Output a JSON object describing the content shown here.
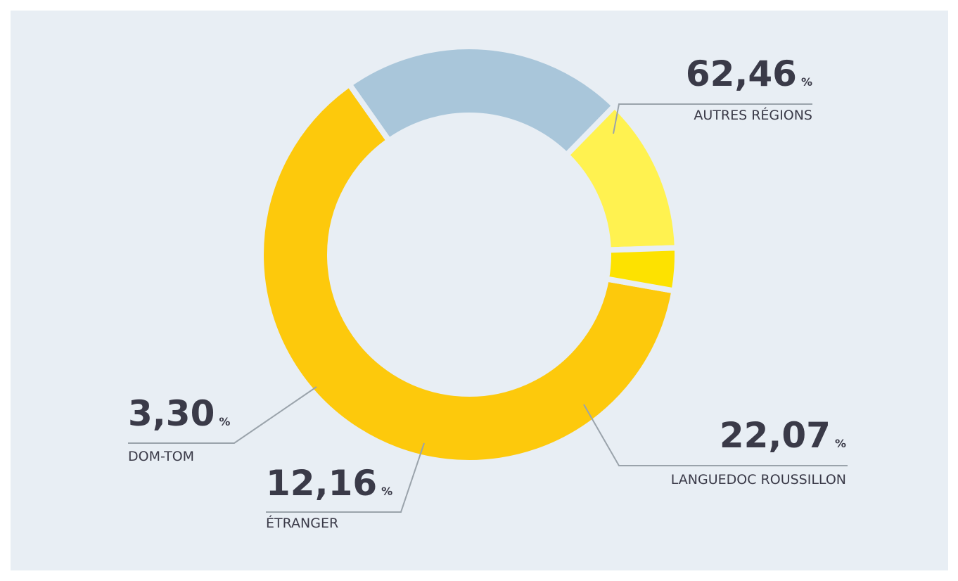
{
  "chart_data": {
    "type": "donut",
    "categories": [
      "AUTRES RÉGIONS",
      "LANGUEDOC ROUSSILLON",
      "ÉTRANGER",
      "DOM-TOM"
    ],
    "values": [
      62.46,
      22.07,
      12.16,
      3.3
    ],
    "value_labels": [
      "62,46",
      "22,07",
      "12,16",
      "3,30"
    ],
    "unit": "%",
    "colors": [
      "#fdc90c",
      "#a9c6da",
      "#fff250",
      "#fde200"
    ]
  }
}
